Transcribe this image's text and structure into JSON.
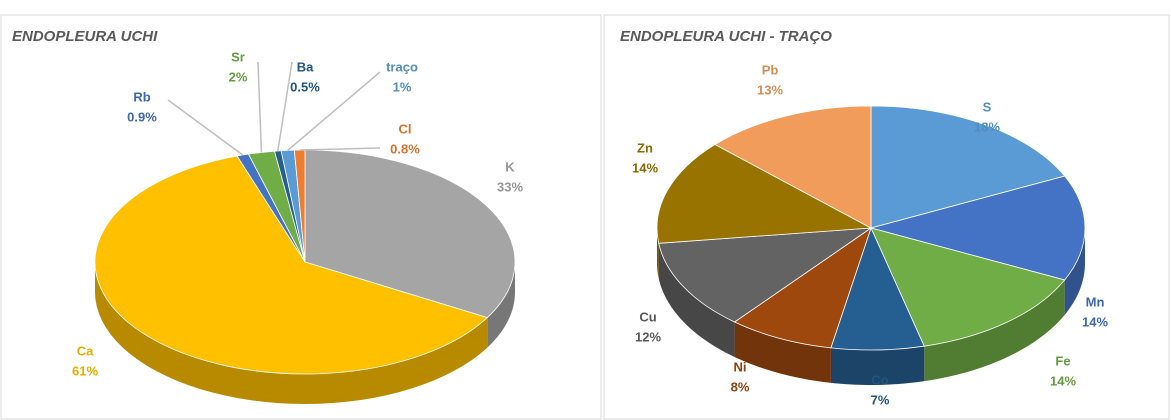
{
  "chart_data": [
    {
      "type": "pie",
      "title": "ENDOPLEURA UCHI",
      "categories": [
        "K",
        "Ca",
        "Rb",
        "Sr",
        "Ba",
        "traço",
        "Cl"
      ],
      "values": [
        33,
        61,
        0.9,
        2,
        0.5,
        1,
        0.8
      ],
      "value_labels": [
        "33%",
        "61%",
        "0.9%",
        "2%",
        "0.5%",
        "1%",
        "0.8%"
      ],
      "colors": [
        "#a5a5a5",
        "#ffc000",
        "#4472c4",
        "#70ad47",
        "#255e91",
        "#5b9bd5",
        "#ed7d31"
      ]
    },
    {
      "type": "pie",
      "title": "ENDOPLEURA UCHI - TRAÇO",
      "categories": [
        "S",
        "Mn",
        "Fe",
        "Co",
        "Ni",
        "Cu",
        "Zn",
        "Pb"
      ],
      "values": [
        18,
        14,
        14,
        7,
        8,
        12,
        14,
        13
      ],
      "value_labels": [
        "18%",
        "14%",
        "14%",
        "7%",
        "8%",
        "12%",
        "14%",
        "13%"
      ],
      "colors": [
        "#5b9bd5",
        "#4472c4",
        "#70ad47",
        "#255e91",
        "#9e480e",
        "#636363",
        "#997300",
        "#f19c5b"
      ]
    }
  ]
}
